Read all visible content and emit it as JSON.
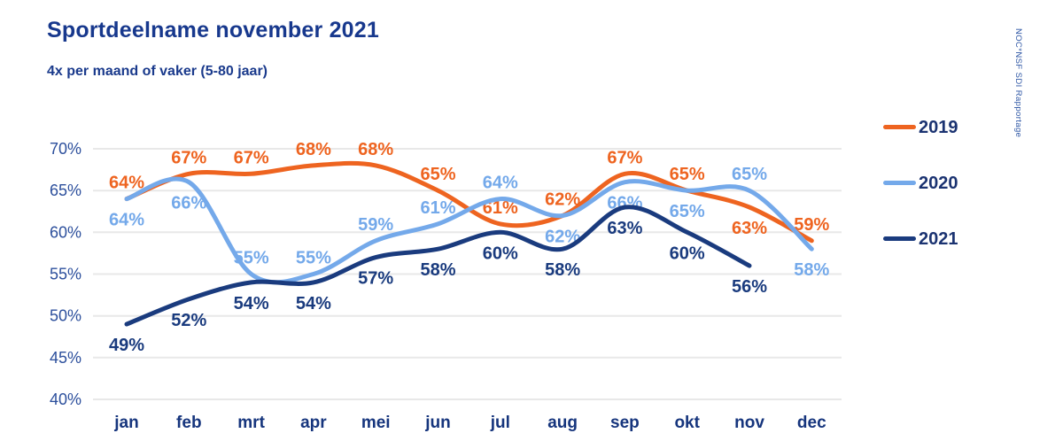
{
  "page": {
    "title": "Sportdeelname november 2021",
    "subtitle": "4x per maand of vaker (5-80 jaar)",
    "watermark": "NOC*NSF SDI Rapportage"
  },
  "colors": {
    "title": "#17388D",
    "subtitle": "#1A3A8C",
    "watermark": "#2C55A4",
    "grid": "#E8E8E8",
    "y_axis_labels": "#2C4F9C",
    "x_axis_labels": "#16357D",
    "legend_text": "#1B3371",
    "series_2019": "#EE6420",
    "series_2020": "#74A9EA",
    "series_2021": "#1A3B7E"
  },
  "legend": {
    "items": [
      {
        "label": "2019",
        "color": "#EE6420"
      },
      {
        "label": "2020",
        "color": "#74A9EA"
      },
      {
        "label": "2021",
        "color": "#1A3B7E"
      }
    ]
  },
  "chart_data": {
    "type": "line",
    "title": "Sportdeelname november 2021",
    "subtitle": "4x per maand of vaker (5-80 jaar)",
    "categories": [
      "jan",
      "feb",
      "mrt",
      "apr",
      "mei",
      "jun",
      "jul",
      "aug",
      "sep",
      "okt",
      "nov",
      "dec"
    ],
    "unit": "%",
    "ylim": [
      40,
      70
    ],
    "y_tick_step": 5,
    "y_tick_labels": [
      "70%",
      "65%",
      "60%",
      "55%",
      "50%",
      "45%",
      "40%"
    ],
    "grid": "horizontal",
    "legend_position": "right",
    "smooth_lines": true,
    "series": [
      {
        "name": "2019",
        "color": "#EE6420",
        "values": [
          64,
          67,
          67,
          68,
          68,
          65,
          61,
          62,
          67,
          65,
          63,
          59
        ],
        "label_side": [
          "above",
          "above",
          "above",
          "above",
          "above",
          "above",
          "above",
          "above",
          "above",
          "above",
          "below",
          "above"
        ]
      },
      {
        "name": "2020",
        "color": "#74A9EA",
        "values": [
          64,
          66,
          55,
          55,
          59,
          61,
          64,
          62,
          66,
          65,
          65,
          58
        ],
        "label_side": [
          "below",
          "below",
          "above",
          "above",
          "above",
          "above",
          "above",
          "below",
          "below",
          "below",
          "above",
          "below"
        ]
      },
      {
        "name": "2021",
        "color": "#1A3B7E",
        "values": [
          49,
          52,
          54,
          54,
          57,
          58,
          60,
          58,
          63,
          60,
          56
        ],
        "label_side": [
          "below",
          "below",
          "below",
          "below",
          "below",
          "below",
          "below",
          "below",
          "below",
          "below",
          "below"
        ]
      }
    ]
  }
}
